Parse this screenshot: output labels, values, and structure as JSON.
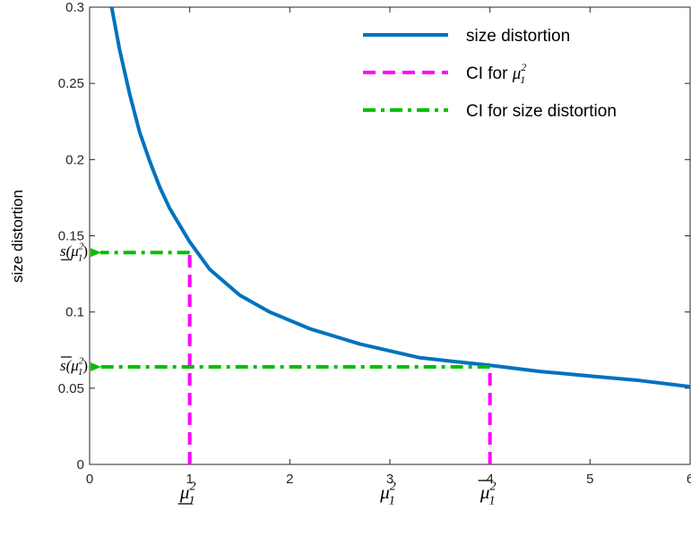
{
  "chart_data": {
    "type": "line",
    "title": "",
    "xlabel": "μ₁²",
    "ylabel": "size distortion",
    "xlim": [
      0,
      6
    ],
    "ylim": [
      0,
      0.3
    ],
    "xticks": [
      0,
      1,
      2,
      3,
      4,
      5,
      6
    ],
    "xtick_labels": [
      "0",
      "1",
      "2",
      "3",
      "4",
      "5",
      "6"
    ],
    "yticks": [
      0,
      0.05,
      0.1,
      0.15,
      0.2,
      0.25,
      0.3
    ],
    "ytick_labels": [
      "0",
      "0.05",
      "0.1",
      "0.15",
      "0.2",
      "0.25",
      "0.3"
    ],
    "grid": false,
    "legend_position": "top-right",
    "series": [
      {
        "name": "size distortion",
        "style": "solid",
        "color": "#0072BD",
        "x": [
          0.22,
          0.3,
          0.4,
          0.5,
          0.6,
          0.7,
          0.8,
          0.9,
          1.0,
          1.2,
          1.5,
          1.8,
          2.2,
          2.7,
          3.3,
          4.0,
          4.5,
          5.0,
          5.5,
          6.0
        ],
        "y": [
          0.3,
          0.272,
          0.243,
          0.218,
          0.199,
          0.182,
          0.168,
          0.157,
          0.146,
          0.128,
          0.111,
          0.1,
          0.089,
          0.079,
          0.07,
          0.065,
          0.061,
          0.058,
          0.055,
          0.051
        ]
      },
      {
        "name": "CI for μ₁²",
        "style": "dashed",
        "color": "#FF00FF",
        "segments": [
          {
            "x": [
              1,
              1
            ],
            "y": [
              0,
              0.139
            ]
          },
          {
            "x": [
              4,
              4
            ],
            "y": [
              0,
              0.064
            ]
          }
        ]
      },
      {
        "name": "CI for size distortion",
        "style": "dashdot",
        "color": "#00C000",
        "segments": [
          {
            "x": [
              1,
              0
            ],
            "y": [
              0.139,
              0.139
            ],
            "arrow": "left"
          },
          {
            "x": [
              4,
              0
            ],
            "y": [
              0.064,
              0.064
            ],
            "arrow": "left"
          }
        ]
      }
    ],
    "annotations": [
      {
        "text_base": "μ",
        "sup": "2",
        "sub": "1",
        "decoration": "underline",
        "at": "x-axis",
        "x": 1
      },
      {
        "text_base": "μ",
        "sup": "2",
        "sub": "1",
        "decoration": "none",
        "at": "x-axis",
        "x": 3
      },
      {
        "text_base": "μ",
        "sup": "2",
        "sub": "1",
        "decoration": "overline",
        "at": "x-axis",
        "x": 4
      },
      {
        "text_prefix": "s(",
        "text_base": "μ",
        "sup": "2",
        "sub": "1",
        "text_suffix": ")",
        "decoration": "underline",
        "at": "y-axis",
        "y": 0.139
      },
      {
        "text_prefix": "s(",
        "text_base": "μ",
        "sup": "2",
        "sub": "1",
        "text_suffix": ")",
        "decoration": "overline",
        "at": "y-axis",
        "y": 0.064
      }
    ]
  }
}
